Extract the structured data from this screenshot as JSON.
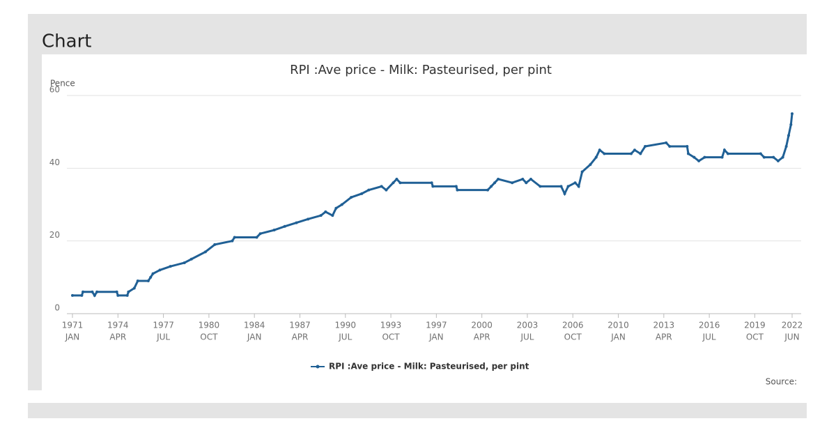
{
  "page": {
    "heading": "Chart",
    "source": "Source:"
  },
  "chart_data": {
    "type": "line",
    "title": "RPI :Ave price - Milk: Pasteurised, per pint",
    "y_label": "Pence",
    "x": [
      "1971-01",
      "1971-09",
      "1971-10",
      "1972-06",
      "1972-08",
      "1972-10",
      "1974-03",
      "1974-04",
      "1974-12",
      "1975-01",
      "1975-06",
      "1975-09",
      "1976-06",
      "1976-08",
      "1976-10",
      "1977-04",
      "1978-01",
      "1979-01",
      "1979-07",
      "1980-07",
      "1981-03",
      "1982-06",
      "1982-08",
      "1984-03",
      "1984-06",
      "1985-06",
      "1986-03",
      "1987-01",
      "1987-11",
      "1988-10",
      "1989-02",
      "1989-08",
      "1989-11",
      "1990-04",
      "1990-12",
      "1991-09",
      "1992-03",
      "1993-02",
      "1993-06",
      "1993-12",
      "1994-03",
      "1994-06",
      "1996-09",
      "1996-10",
      "1998-06",
      "1998-07",
      "2000-09",
      "2000-12",
      "2001-03",
      "2001-06",
      "2002-06",
      "2003-03",
      "2003-06",
      "2003-10",
      "2004-06",
      "2005-12",
      "2006-03",
      "2006-06",
      "2006-12",
      "2007-03",
      "2007-06",
      "2008-01",
      "2008-06",
      "2008-09",
      "2009-01",
      "2010-12",
      "2011-03",
      "2011-08",
      "2011-12",
      "2013-06",
      "2013-09",
      "2014-12",
      "2015-01",
      "2015-06",
      "2015-10",
      "2016-03",
      "2017-06",
      "2017-08",
      "2017-11",
      "2020-03",
      "2020-06",
      "2021-02",
      "2021-06",
      "2021-10",
      "2022-01",
      "2022-03",
      "2022-05",
      "2022-06"
    ],
    "series": [
      {
        "name": "RPI :Ave price - Milk: Pasteurised, per pint",
        "color": "#206095",
        "values": [
          5,
          5,
          6,
          6,
          5,
          6,
          6,
          5,
          5,
          6,
          7,
          9,
          9,
          10,
          11,
          12,
          13,
          14,
          15,
          17,
          19,
          20,
          21,
          21,
          22,
          23,
          24,
          25,
          26,
          27,
          28,
          27,
          29,
          30,
          32,
          33,
          34,
          35,
          34,
          36,
          37,
          36,
          36,
          35,
          35,
          34,
          34,
          35,
          36,
          37,
          36,
          37,
          36,
          37,
          35,
          35,
          33,
          35,
          36,
          35,
          39,
          41,
          43,
          45,
          44,
          44,
          45,
          44,
          46,
          47,
          46,
          46,
          44,
          43,
          42,
          43,
          43,
          45,
          44,
          44,
          43,
          43,
          42,
          43,
          46,
          49,
          52,
          55
        ]
      }
    ],
    "xlim": [
      "1971-01",
      "2022-06"
    ],
    "ylim": [
      0,
      60
    ],
    "yticks": [
      0,
      20,
      40,
      60
    ],
    "xticks": [
      {
        "value": "1971-01",
        "label": [
          "1971",
          "JAN"
        ]
      },
      {
        "value": "1974-04",
        "label": [
          "1974",
          "APR"
        ]
      },
      {
        "value": "1977-07",
        "label": [
          "1977",
          "JUL"
        ]
      },
      {
        "value": "1980-10",
        "label": [
          "1980",
          "OCT"
        ]
      },
      {
        "value": "1984-01",
        "label": [
          "1984",
          "JAN"
        ]
      },
      {
        "value": "1987-04",
        "label": [
          "1987",
          "APR"
        ]
      },
      {
        "value": "1990-07",
        "label": [
          "1990",
          "JUL"
        ]
      },
      {
        "value": "1993-10",
        "label": [
          "1993",
          "OCT"
        ]
      },
      {
        "value": "1997-01",
        "label": [
          "1997",
          "JAN"
        ]
      },
      {
        "value": "2000-04",
        "label": [
          "2000",
          "APR"
        ]
      },
      {
        "value": "2003-07",
        "label": [
          "2003",
          "JUL"
        ]
      },
      {
        "value": "2006-10",
        "label": [
          "2006",
          "OCT"
        ]
      },
      {
        "value": "2010-01",
        "label": [
          "2010",
          "JAN"
        ]
      },
      {
        "value": "2013-04",
        "label": [
          "2013",
          "APR"
        ]
      },
      {
        "value": "2016-07",
        "label": [
          "2016",
          "JUL"
        ]
      },
      {
        "value": "2019-10",
        "label": [
          "2019",
          "OCT"
        ]
      },
      {
        "value": "2022-06",
        "label": [
          "2022",
          "JUN"
        ]
      }
    ],
    "grid": true,
    "legend": "bottom"
  }
}
